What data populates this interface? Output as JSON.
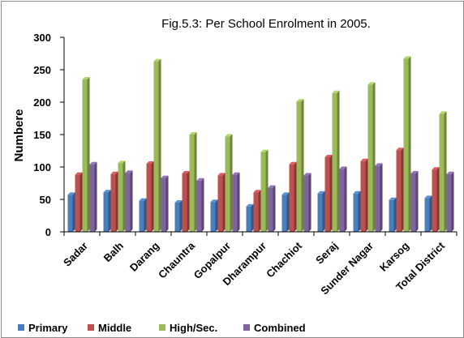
{
  "chart_data": {
    "type": "bar",
    "title": "Fig.5.3:  Per School Enrolment  in 2005.",
    "ylabel": "Numbere",
    "xlabel": "",
    "ylim": [
      0,
      300
    ],
    "yticks": [
      0,
      50,
      100,
      150,
      200,
      250,
      300
    ],
    "grid": false,
    "legend_position": "bottom",
    "categories": [
      "Sadar",
      "Balh",
      "Darang",
      "Chauntra",
      "Gopalpur",
      "Dharampur",
      "Chachiot",
      "Seraj",
      "Sunder Nagar",
      "Karsog",
      "Total District"
    ],
    "series": [
      {
        "name": "Primary",
        "color": "#4a7ebb",
        "values": [
          57,
          61,
          48,
          45,
          46,
          39,
          57,
          59,
          59,
          49,
          52
        ]
      },
      {
        "name": "Middle",
        "color": "#c0504d",
        "values": [
          88,
          89,
          105,
          90,
          87,
          61,
          104,
          115,
          109,
          126,
          96
        ]
      },
      {
        "name": "High/Sec.",
        "color": "#9bbb59",
        "values": [
          235,
          106,
          263,
          150,
          147,
          123,
          201,
          214,
          227,
          267,
          182
        ]
      },
      {
        "name": "Combined",
        "color": "#8064a2",
        "values": [
          104,
          91,
          83,
          79,
          88,
          68,
          87,
          97,
          102,
          90,
          89
        ]
      }
    ]
  }
}
